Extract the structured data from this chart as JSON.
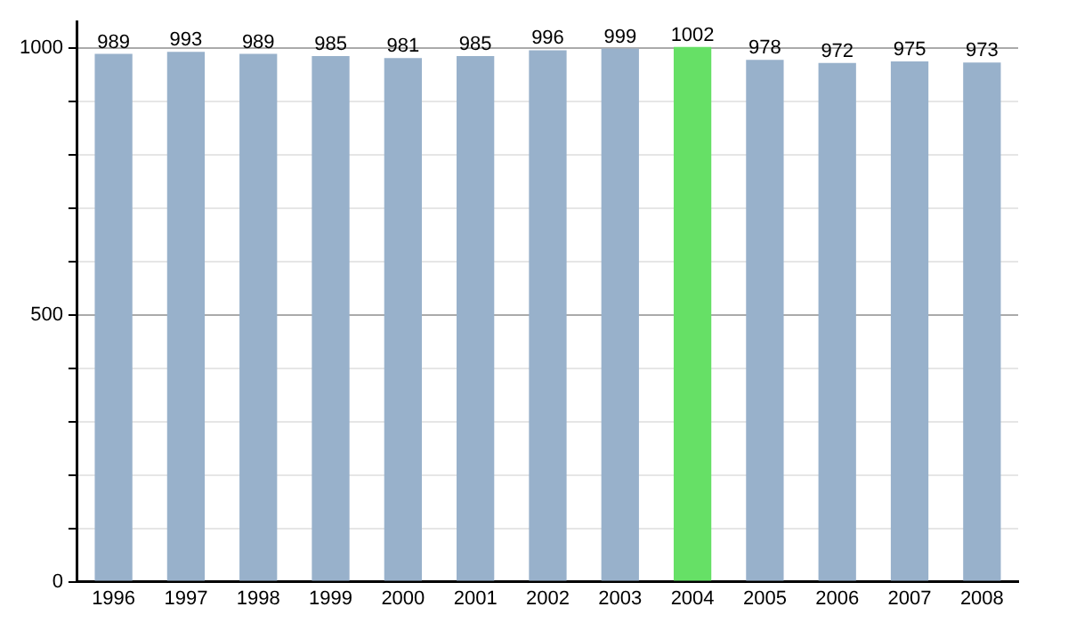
{
  "chart_data": {
    "type": "bar",
    "categories": [
      "1996",
      "1997",
      "1998",
      "1999",
      "2000",
      "2001",
      "2002",
      "2003",
      "2004",
      "2005",
      "2006",
      "2007",
      "2008"
    ],
    "values": [
      989,
      993,
      989,
      985,
      981,
      985,
      996,
      999,
      1002,
      978,
      972,
      975,
      973
    ],
    "colors": [
      "#98b1cb",
      "#98b1cb",
      "#98b1cb",
      "#98b1cb",
      "#98b1cb",
      "#98b1cb",
      "#98b1cb",
      "#98b1cb",
      "#66e066",
      "#98b1cb",
      "#98b1cb",
      "#98b1cb",
      "#98b1cb"
    ],
    "ylim": [
      0,
      1050
    ],
    "yticks": [
      0,
      {
        "value": 100,
        "label": null
      },
      {
        "value": 200,
        "label": null
      },
      {
        "value": 300,
        "label": null
      },
      {
        "value": 400,
        "label": null
      },
      500,
      {
        "value": 600,
        "label": null
      },
      {
        "value": 700,
        "label": null
      },
      {
        "value": 800,
        "label": null
      },
      {
        "value": 900,
        "label": null
      },
      1000
    ],
    "grid": "y",
    "data_labels": true,
    "legend": false
  }
}
